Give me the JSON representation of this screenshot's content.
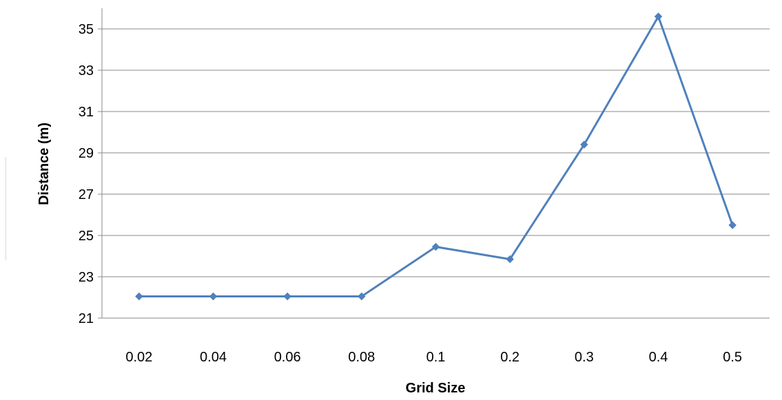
{
  "chart_data": {
    "type": "line",
    "title": "",
    "xlabel": "Grid Size",
    "ylabel": "Distance (m)",
    "categories": [
      "0.02",
      "0.04",
      "0.06",
      "0.08",
      "0.1",
      "0.2",
      "0.3",
      "0.4",
      "0.5"
    ],
    "series": [
      {
        "values": [
          22.05,
          22.05,
          22.05,
          22.05,
          24.45,
          23.85,
          29.4,
          35.6,
          25.5
        ]
      }
    ],
    "yticks": [
      "21",
      "23",
      "25",
      "27",
      "29",
      "31",
      "33",
      "35"
    ],
    "ylim": [
      21,
      36
    ],
    "grid": true,
    "legend": "none",
    "marker": "diamond",
    "colors": {
      "line": "#4f81bd",
      "grid": "#898989",
      "axis": "#898989"
    }
  }
}
